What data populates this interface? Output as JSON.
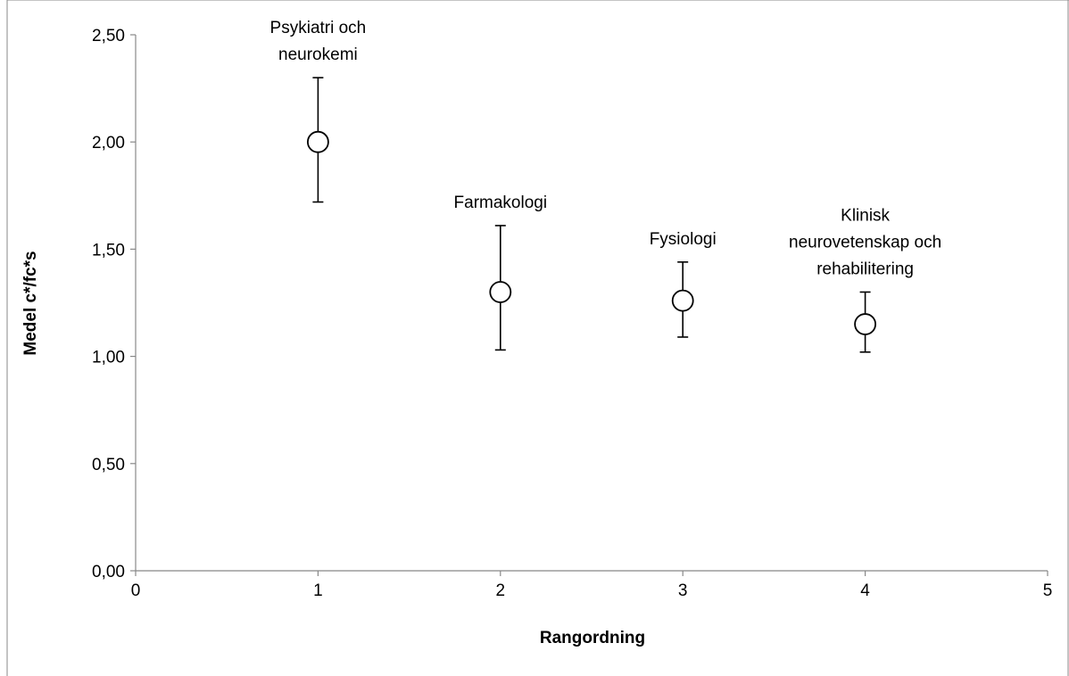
{
  "chart_data": {
    "type": "scatter",
    "xlabel": "Rangordning",
    "ylabel": "Medel c*/fc*s",
    "xlim": [
      0,
      5
    ],
    "ylim": [
      0,
      2.5
    ],
    "x_ticks": [
      "0",
      "1",
      "2",
      "3",
      "4",
      "5"
    ],
    "y_ticks": [
      "0,00",
      "0,50",
      "1,00",
      "1,50",
      "2,00",
      "2,50"
    ],
    "grid": false,
    "legend": "none",
    "marker": "open-circle",
    "marker_color": "#000000",
    "points": [
      {
        "x": 1,
        "y": 2.0,
        "err_low": 1.72,
        "err_high": 2.3,
        "label": [
          "Psykiatri och",
          "neurokemi"
        ]
      },
      {
        "x": 2,
        "y": 1.3,
        "err_low": 1.03,
        "err_high": 1.61,
        "label": [
          "Farmakologi"
        ]
      },
      {
        "x": 3,
        "y": 1.26,
        "err_low": 1.09,
        "err_high": 1.44,
        "label": [
          "Fysiologi"
        ]
      },
      {
        "x": 4,
        "y": 1.15,
        "err_low": 1.02,
        "err_high": 1.3,
        "label": [
          "Klinisk",
          "neurovetenskap och",
          "rehabilitering"
        ]
      }
    ]
  }
}
